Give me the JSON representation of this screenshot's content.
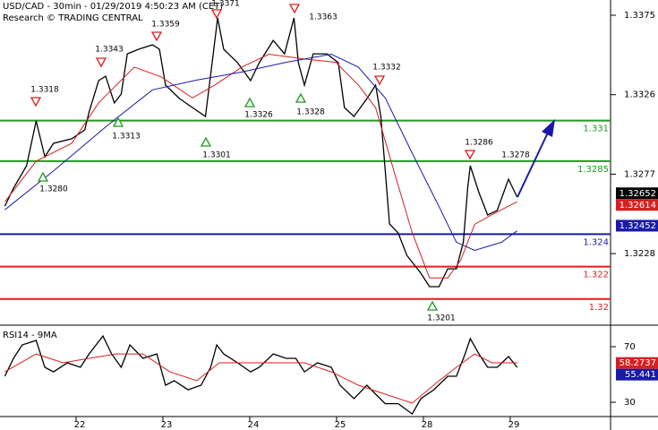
{
  "header": {
    "title": "USD/CAD - 30min - 01/29/2019 4:50:23 AM (CET)",
    "credit": "Research © TRADING CENTRAL"
  },
  "chart_data": [
    {
      "type": "line",
      "xlim": [
        -0.876,
        6.155
      ],
      "ylim": [
        1.31844,
        1.33844
      ],
      "yticks": [
        1.3375,
        1.3326,
        1.3277,
        1.3228
      ],
      "levels": [
        {
          "value": 1.331,
          "color": "#1f9a1f"
        },
        {
          "value": 1.3285,
          "color": "#1f9a1f"
        },
        {
          "value": 1.324,
          "color": "#1a1aa8"
        },
        {
          "value": 1.322,
          "color": "#d62020"
        },
        {
          "value": 1.32,
          "color": "#d62020"
        }
      ],
      "last_values": [
        {
          "value": 1.32652,
          "color": "#000000"
        },
        {
          "value": 1.32614,
          "color": "#d62020"
        },
        {
          "value": 1.32452,
          "color": "#1a1aa8"
        }
      ],
      "highs": [
        "1.3318",
        "1.3343",
        "1.3359",
        "1.3371",
        "1.3363",
        "1.3332",
        "1.3286",
        "1.3278"
      ],
      "lows": [
        "1.3280",
        "1.3313",
        "1.3301",
        "1.3326",
        "1.3328",
        "1.3201"
      ],
      "series": [
        {
          "color": "#000000",
          "x": [
            -0.82,
            -0.72,
            -0.57,
            -0.46,
            -0.36,
            -0.26,
            -0.05,
            0.1,
            0.15,
            0.26,
            0.34,
            0.44,
            0.52,
            0.59,
            0.72,
            0.88,
            0.96,
            1.03,
            1.19,
            1.34,
            1.49,
            1.58,
            1.63,
            1.7,
            1.86,
            2.01,
            2.11,
            2.27,
            2.4,
            2.51,
            2.56,
            2.63,
            2.73,
            2.89,
            3.02,
            3.09,
            3.2,
            3.35,
            3.45,
            3.51,
            3.56,
            3.61,
            3.71,
            3.81,
            3.97,
            4.07,
            4.18,
            4.28,
            4.38,
            4.46,
            4.51,
            4.54,
            4.64,
            4.74,
            4.85,
            4.98,
            5.08
          ],
          "values": [
            1.32573,
            1.32684,
            1.32822,
            1.33098,
            1.32877,
            1.3296,
            1.32988,
            1.33043,
            1.33153,
            1.33347,
            1.33374,
            1.33209,
            1.33264,
            1.33512,
            1.3354,
            1.33568,
            1.3354,
            1.33319,
            1.33236,
            1.33181,
            1.33126,
            1.33512,
            1.33733,
            1.3354,
            1.33457,
            1.33347,
            1.33457,
            1.33595,
            1.33512,
            1.33733,
            1.33457,
            1.33319,
            1.33512,
            1.33512,
            1.33457,
            1.33181,
            1.33126,
            1.33236,
            1.33319,
            1.33126,
            1.32794,
            1.32463,
            1.32407,
            1.32269,
            1.32159,
            1.32076,
            1.32076,
            1.32186,
            1.32186,
            1.32352,
            1.32684,
            1.32822,
            1.32656,
            1.32518,
            1.32546,
            1.32739,
            1.32628
          ]
        },
        {
          "color": "#d62020",
          "x": [
            -0.82,
            -0.46,
            -0.05,
            0.26,
            0.67,
            0.98,
            1.34,
            1.6,
            1.91,
            2.22,
            2.63,
            2.99,
            3.25,
            3.45,
            3.66,
            3.87,
            4.07,
            4.28,
            4.43,
            4.59,
            4.79,
            5.08
          ],
          "values": [
            1.326,
            1.3285,
            1.3296,
            1.3321,
            1.3343,
            1.3337,
            1.3324,
            1.3332,
            1.3343,
            1.3351,
            1.3348,
            1.3346,
            1.3332,
            1.3318,
            1.3279,
            1.3241,
            1.3213,
            1.3213,
            1.3224,
            1.3246,
            1.3252,
            1.326
          ]
        },
        {
          "color": "#1a1aa8",
          "x": [
            -0.82,
            -0.26,
            0.36,
            0.88,
            1.39,
            1.91,
            2.42,
            2.94,
            3.25,
            3.56,
            3.87,
            4.18,
            4.38,
            4.59,
            4.9,
            5.08
          ],
          "values": [
            1.3255,
            1.3279,
            1.3307,
            1.3329,
            1.3335,
            1.334,
            1.3346,
            1.3351,
            1.3343,
            1.3324,
            1.329,
            1.3257,
            1.3235,
            1.323,
            1.3235,
            1.3242
          ]
        }
      ]
    },
    {
      "type": "line",
      "title": "RSI14 - 9MA",
      "xlim": [
        -0.876,
        6.155
      ],
      "ylim": [
        19.7,
        84.2
      ],
      "yticks": [
        70,
        30
      ],
      "xticks": [
        {
          "value": 0,
          "label": "22"
        },
        {
          "value": 1,
          "label": "23"
        },
        {
          "value": 2,
          "label": "24"
        },
        {
          "value": 3,
          "label": "25"
        },
        {
          "value": 4,
          "label": "28"
        },
        {
          "value": 5,
          "label": "29"
        }
      ],
      "last_values": [
        {
          "value": 58.2737,
          "color": "#d62020"
        },
        {
          "value": 55.441,
          "color": "#1a1aa8"
        }
      ],
      "series": [
        {
          "color": "#000000",
          "x": [
            -0.82,
            -0.72,
            -0.62,
            -0.46,
            -0.36,
            -0.26,
            -0.1,
            0.05,
            0.15,
            0.31,
            0.41,
            0.52,
            0.62,
            0.77,
            0.93,
            1.03,
            1.13,
            1.29,
            1.44,
            1.55,
            1.62,
            1.7,
            1.86,
            2.01,
            2.11,
            2.27,
            2.42,
            2.53,
            2.63,
            2.78,
            2.94,
            3.04,
            3.2,
            3.35,
            3.45,
            3.56,
            3.71,
            3.87,
            3.97,
            4.12,
            4.28,
            4.38,
            4.48,
            4.54,
            4.64,
            4.74,
            4.85,
            4.98,
            5.08
          ],
          "values": [
            48.7,
            61.6,
            71.3,
            74.5,
            55.2,
            51.9,
            58.4,
            55.2,
            64.8,
            77.7,
            64.8,
            55.2,
            71.3,
            61.6,
            64.8,
            42.3,
            45.5,
            39.0,
            42.3,
            55.2,
            71.3,
            64.8,
            58.4,
            51.9,
            55.2,
            64.8,
            61.6,
            61.6,
            51.9,
            58.4,
            55.2,
            42.3,
            32.6,
            42.3,
            35.8,
            29.0,
            29.0,
            21.6,
            32.6,
            39.0,
            48.7,
            48.7,
            64.8,
            75.8,
            64.8,
            55.2,
            55.2,
            62.9,
            55.2
          ]
        },
        {
          "color": "#d62020",
          "x": [
            -0.82,
            -0.46,
            -0.15,
            0.15,
            0.46,
            0.77,
            1.08,
            1.39,
            1.65,
            1.96,
            2.32,
            2.63,
            2.94,
            3.25,
            3.56,
            3.87,
            4.18,
            4.38,
            4.59,
            4.79,
            5.08
          ],
          "values": [
            51.9,
            64.8,
            58.4,
            61.6,
            64.8,
            64.8,
            51.9,
            45.5,
            58.4,
            58.4,
            58.4,
            58.4,
            51.9,
            42.3,
            35.8,
            29.4,
            45.5,
            55.2,
            64.8,
            58.4,
            58.4
          ]
        }
      ]
    }
  ]
}
